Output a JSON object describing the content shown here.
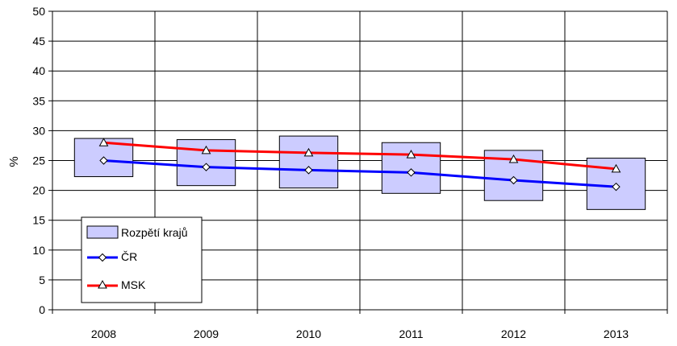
{
  "colors": {
    "range_fill": "#ccccff",
    "cr_line": "#0000ff",
    "msk_line": "#ff0000",
    "grid": "#000000"
  },
  "chart_data": {
    "type": "line",
    "categories": [
      "2008",
      "2009",
      "2010",
      "2011",
      "2012",
      "2013"
    ],
    "ylabel": "%",
    "xlabel": "",
    "ylim": [
      0,
      50
    ],
    "yticks": [
      0,
      5,
      10,
      15,
      20,
      25,
      30,
      35,
      40,
      45,
      50
    ],
    "grid": true,
    "legend_position": "bottom-left",
    "range_series": {
      "name": "Rozpětí krajů",
      "low": [
        22.3,
        20.8,
        20.4,
        19.5,
        18.3,
        16.8
      ],
      "high": [
        28.7,
        28.5,
        29.1,
        28.0,
        26.7,
        25.4
      ]
    },
    "series": [
      {
        "name": "ČR",
        "values": [
          25.0,
          23.9,
          23.4,
          23.0,
          21.7,
          20.6
        ],
        "marker": "diamond",
        "color": "#0000ff"
      },
      {
        "name": "MSK",
        "values": [
          28.0,
          26.7,
          26.3,
          26.0,
          25.2,
          23.6
        ],
        "marker": "triangle",
        "color": "#ff0000"
      }
    ]
  }
}
